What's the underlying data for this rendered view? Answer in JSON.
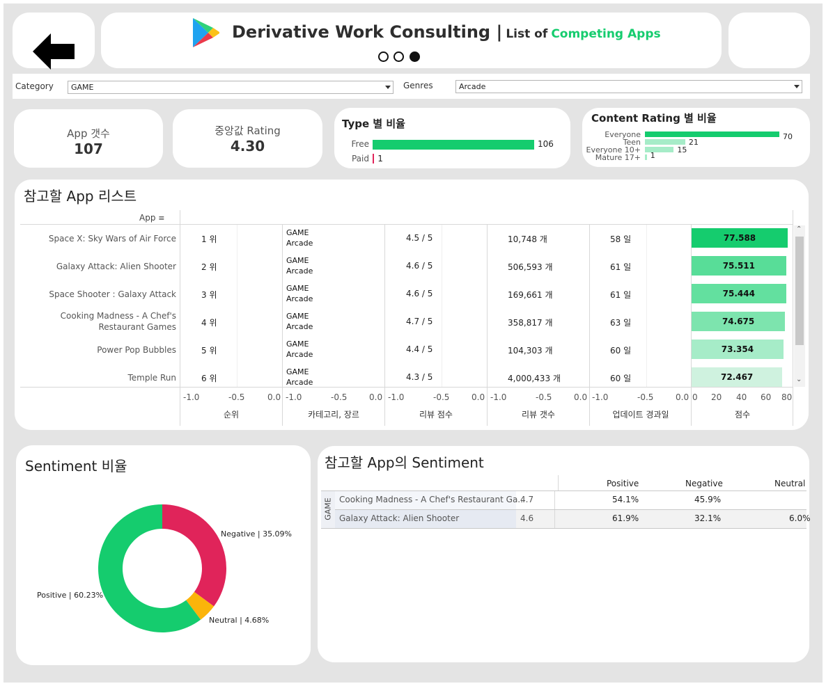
{
  "header": {
    "back_label": "Back",
    "title_main": "Derivative Work Consulting |",
    "title_sub": "List of",
    "title_highlight": "Competing Apps",
    "page_dots": [
      "page-1",
      "page-2",
      "page-3"
    ],
    "active_page": 3
  },
  "filters": {
    "category_label": "Category",
    "category_value": "GAME",
    "genres_label": "Genres",
    "genres_value": "Arcade"
  },
  "kpis": {
    "app_count_label": "App 갯수",
    "app_count_value": "107",
    "median_rating_label": "중앙값 Rating",
    "median_rating_value": "4.30"
  },
  "type_ratio": {
    "title": "Type 별 비율",
    "items": [
      {
        "label": "Free",
        "value": 106,
        "value_text": "106"
      },
      {
        "label": "Paid",
        "value": 1,
        "value_text": "1"
      }
    ]
  },
  "content_rating": {
    "title": "Content Rating 별 비율",
    "items": [
      {
        "label": "Everyone",
        "value": 70,
        "value_text": "70"
      },
      {
        "label": "Teen",
        "value": 21,
        "value_text": "21"
      },
      {
        "label": "Everyone 10+",
        "value": 15,
        "value_text": "15"
      },
      {
        "label": "Mature 17+",
        "value": 1,
        "value_text": "1"
      }
    ]
  },
  "app_list": {
    "title": "참고할 App 리스트",
    "column_header": "App",
    "rows": [
      {
        "name": "Space X: Sky Wars of Air Force",
        "rank": "1 위",
        "category": "GAME",
        "genre": "Arcade",
        "rating": "4.5 / 5",
        "reviews": "10,748 개",
        "days": "58 일",
        "score": 77.588,
        "score_text": "77.588"
      },
      {
        "name": "Galaxy Attack: Alien Shooter",
        "rank": "2 위",
        "category": "GAME",
        "genre": "Arcade",
        "rating": "4.6 / 5",
        "reviews": "506,593 개",
        "days": "61 일",
        "score": 75.511,
        "score_text": "75.511"
      },
      {
        "name": "Space Shooter : Galaxy Attack",
        "rank": "3 위",
        "category": "GAME",
        "genre": "Arcade",
        "rating": "4.6 / 5",
        "reviews": "169,661 개",
        "days": "61 일",
        "score": 75.444,
        "score_text": "75.444"
      },
      {
        "name": "Cooking Madness - A Chef's Restaurant Games",
        "name_line1": "Cooking Madness - A Chef's",
        "name_line2": "Restaurant Games",
        "rank": "4 위",
        "category": "GAME",
        "genre": "Arcade",
        "rating": "4.7 / 5",
        "reviews": "358,817 개",
        "days": "63 일",
        "score": 74.675,
        "score_text": "74.675"
      },
      {
        "name": "Power Pop Bubbles",
        "rank": "5 위",
        "category": "GAME",
        "genre": "Arcade",
        "rating": "4.4 / 5",
        "reviews": "104,303 개",
        "days": "60 일",
        "score": 73.354,
        "score_text": "73.354"
      },
      {
        "name": "Temple Run",
        "rank": "6 위",
        "category": "GAME",
        "genre": "Arcade",
        "rating": "4.3 / 5",
        "reviews": "4,000,433 개",
        "days": "60 일",
        "score": 72.467,
        "score_text": "72.467"
      }
    ],
    "bar_colors": [
      "#15cc6e",
      "#58dd98",
      "#63e09f",
      "#7de4ae",
      "#a6ecc8",
      "#cff2df"
    ],
    "axes": [
      {
        "title": "순위",
        "ticks": [
          "-1.0",
          "-0.5",
          "0.0"
        ]
      },
      {
        "title": "카테고리, 장르",
        "ticks": [
          "-1.0",
          "-0.5",
          "0.0"
        ]
      },
      {
        "title": "리뷰 점수",
        "ticks": [
          "-1.0",
          "-0.5",
          "0.0"
        ]
      },
      {
        "title": "리뷰 갯수",
        "ticks": [
          "-1.0",
          "-0.5",
          "0.0"
        ]
      },
      {
        "title": "업데이트 경과일",
        "ticks": [
          "-1.0",
          "-0.5",
          "0.0"
        ]
      },
      {
        "title": "점수",
        "ticks": [
          "0",
          "20",
          "40",
          "60",
          "80"
        ]
      }
    ],
    "score_axis_max": 80
  },
  "sentiment_ratio": {
    "title": "Sentiment 비율",
    "slices": [
      {
        "label": "Negative | 35.09%",
        "name": "Negative",
        "value": 35.09,
        "color": "#e0245a"
      },
      {
        "label": "Neutral | 4.68%",
        "name": "Neutral",
        "value": 4.68,
        "color": "#fbb40a"
      },
      {
        "label": "Positive | 60.23%",
        "name": "Positive",
        "value": 60.23,
        "color": "#15cc6e"
      }
    ]
  },
  "sentiment_table": {
    "title": "참고할 App의 Sentiment",
    "group_label": "GAME",
    "columns": [
      "Positive",
      "Negative",
      "Neutral"
    ],
    "rows": [
      {
        "name": "Cooking Madness - A Chef's Restaurant Ga..",
        "rating": "4.7",
        "positive": "54.1%",
        "negative": "45.9%",
        "neutral": ""
      },
      {
        "name": "Galaxy Attack: Alien Shooter",
        "rating": "4.6",
        "positive": "61.9%",
        "negative": "32.1%",
        "neutral": "6.0%"
      }
    ]
  },
  "colors": {
    "accent": "#15cc6e",
    "paid": "#e0245a",
    "content_bar": "#15cc6e",
    "content_bar_light": "#a6ecc8"
  }
}
